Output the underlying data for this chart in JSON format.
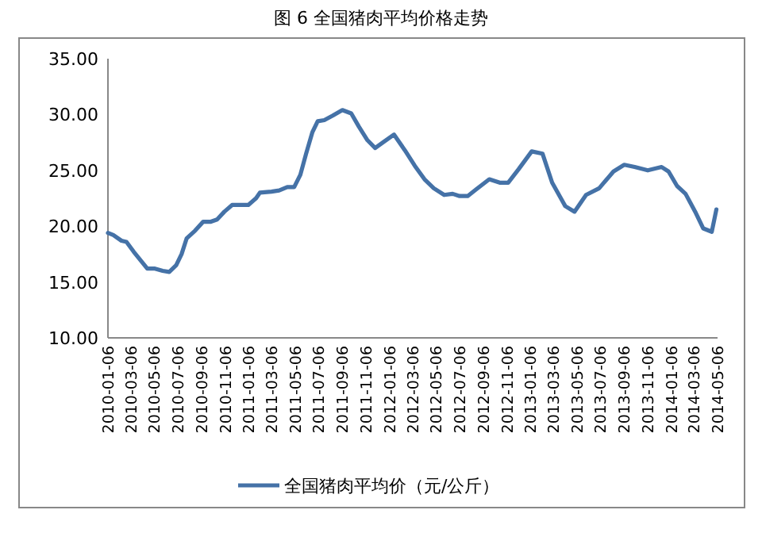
{
  "chart_data": {
    "type": "line",
    "title": "图 6 全国猪肉平均价格走势",
    "x": [
      "2010-01-06",
      "2010-01-20",
      "2010-02-10",
      "2010-02-23",
      "2010-03-14",
      "2010-04-18",
      "2010-05-08",
      "2010-05-28",
      "2010-06-14",
      "2010-07-02",
      "2010-07-16",
      "2010-07-29",
      "2010-08-20",
      "2010-09-10",
      "2010-09-30",
      "2010-10-16",
      "2010-11-04",
      "2010-11-24",
      "2011-01-05",
      "2011-01-25",
      "2011-02-04",
      "2011-03-06",
      "2011-03-26",
      "2011-04-16",
      "2011-05-04",
      "2011-05-20",
      "2011-06-04",
      "2011-06-20",
      "2011-07-04",
      "2011-07-21",
      "2011-08-12",
      "2011-09-06",
      "2011-09-29",
      "2011-10-19",
      "2011-11-10",
      "2011-11-30",
      "2011-12-20",
      "2012-01-18",
      "2012-02-15",
      "2012-03-12",
      "2012-04-06",
      "2012-04-30",
      "2012-05-27",
      "2012-06-18",
      "2012-07-06",
      "2012-07-27",
      "2012-08-18",
      "2012-09-21",
      "2012-10-18",
      "2012-11-09",
      "2012-12-06",
      "2013-01-09",
      "2013-02-06",
      "2013-03-03",
      "2013-04-06",
      "2013-04-30",
      "2013-05-30",
      "2013-07-03",
      "2013-08-09",
      "2013-09-06",
      "2013-10-03",
      "2013-11-06",
      "2013-12-12",
      "2013-12-30",
      "2014-01-21",
      "2014-02-12",
      "2014-03-09",
      "2014-03-30",
      "2014-04-21",
      "2014-05-03"
    ],
    "series": [
      {
        "name": "全国猪肉平均价（元/公斤）",
        "color": "#4572a7",
        "values": [
          19.4,
          19.2,
          18.7,
          18.6,
          17.7,
          16.2,
          16.2,
          16.0,
          15.9,
          16.5,
          17.5,
          18.9,
          19.6,
          20.4,
          20.4,
          20.6,
          21.3,
          21.9,
          21.9,
          22.5,
          23.0,
          23.1,
          23.2,
          23.5,
          23.5,
          24.6,
          26.5,
          28.4,
          29.4,
          29.5,
          29.9,
          30.4,
          30.1,
          28.9,
          27.7,
          27.0,
          27.5,
          28.2,
          26.8,
          25.4,
          24.2,
          23.4,
          22.8,
          22.9,
          22.7,
          22.7,
          23.3,
          24.2,
          23.9,
          23.9,
          25.1,
          26.7,
          26.5,
          23.9,
          21.8,
          21.3,
          22.8,
          23.4,
          24.9,
          25.5,
          25.3,
          25.0,
          25.3,
          24.9,
          23.6,
          22.9,
          21.3,
          19.8,
          19.5,
          21.5
        ]
      }
    ],
    "xlim": [
      "2010-01-06",
      "2014-05-06"
    ],
    "xticks": [
      "2010-01-06",
      "2010-03-06",
      "2010-05-06",
      "2010-07-06",
      "2010-09-06",
      "2010-11-06",
      "2011-01-06",
      "2011-03-06",
      "2011-05-06",
      "2011-07-06",
      "2011-09-06",
      "2011-11-06",
      "2012-01-06",
      "2012-03-06",
      "2012-05-06",
      "2012-07-06",
      "2012-09-06",
      "2012-11-06",
      "2013-01-06",
      "2013-03-06",
      "2013-05-06",
      "2013-07-06",
      "2013-09-06",
      "2013-11-06",
      "2014-01-06",
      "2014-03-06",
      "2014-05-06"
    ],
    "ylim": [
      10,
      35
    ],
    "yticks": [
      {
        "value": 10,
        "label": "10.00"
      },
      {
        "value": 15,
        "label": "15.00"
      },
      {
        "value": 20,
        "label": "20.00"
      },
      {
        "value": 25,
        "label": "25.00"
      },
      {
        "value": 30,
        "label": "30.00"
      },
      {
        "value": 35,
        "label": "35.00"
      }
    ],
    "legend": "bottom",
    "grid": false,
    "marker": "none",
    "line_style": "solid"
  }
}
